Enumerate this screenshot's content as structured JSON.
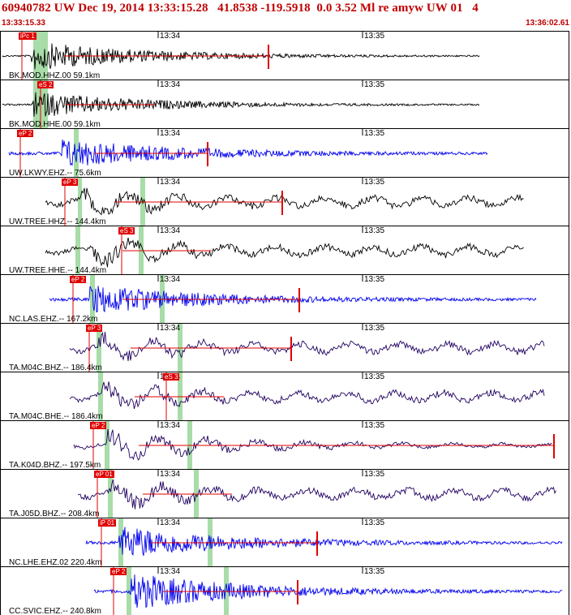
{
  "header": {
    "title": "60940782 UW Dec 19, 2014 13:33:15.28   41.8538 -119.5918  0.0 3.52 Ml re amyw UW 01   4",
    "start_time": "13:33:15.33",
    "end_time": "13:36:02.61"
  },
  "tick_labels": [
    "13:34",
    "13:35"
  ],
  "colors": {
    "black_trace": "#000000",
    "blue_trace": "#0000ee",
    "navy_trace": "#200060",
    "pick": "#e00000",
    "window": "#a8dca8"
  },
  "traces": [
    {
      "label": "BK.MOD.HHZ.00 59.1km",
      "pick": "iPc 1",
      "color": "black"
    },
    {
      "label": "BK.MOD.HHE.00 59.1km",
      "pick": "eS 2",
      "color": "black"
    },
    {
      "label": "UW.LKWY.EHZ.-- 75.6km",
      "pick": "eP 2",
      "color": "blue"
    },
    {
      "label": "UW.TREE.HHZ.-- 144.4km",
      "pick": "eP 3",
      "color": "black"
    },
    {
      "label": "UW.TREE.HHE.-- 144.4km",
      "pick": "eS 3",
      "color": "black"
    },
    {
      "label": "NC.LAS.EHZ.-- 167.2km",
      "pick": "eP 2",
      "color": "blue"
    },
    {
      "label": "TA.M04C.BHZ.-- 186.4km",
      "pick": "eP 3",
      "color": "navy"
    },
    {
      "label": "TA.M04C.BHE.-- 186.4km",
      "pick": "eS 3",
      "color": "navy"
    },
    {
      "label": "TA.K04D.BHZ.-- 197.5km",
      "pick": "eP 2",
      "color": "navy"
    },
    {
      "label": "TA.J05D.BHZ.-- 208.4km",
      "pick": "eP 01",
      "color": "navy"
    },
    {
      "label": "NC.LHE.EHZ.02 220.4km",
      "pick": "iP 01",
      "color": "blue"
    },
    {
      "label": "CC.SVIC.EHZ.-- 240.8km",
      "pick": "eP 2",
      "color": "blue"
    }
  ]
}
